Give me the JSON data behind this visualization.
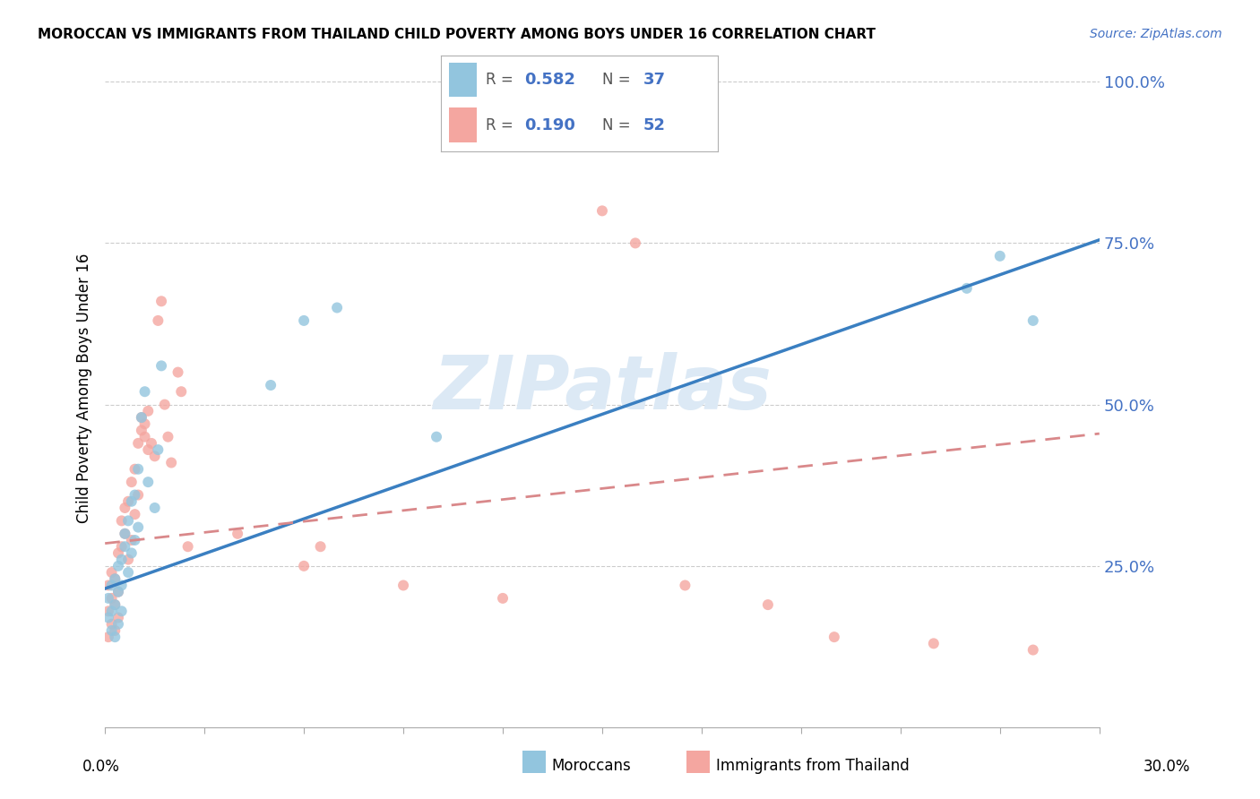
{
  "title": "MOROCCAN VS IMMIGRANTS FROM THAILAND CHILD POVERTY AMONG BOYS UNDER 16 CORRELATION CHART",
  "source": "Source: ZipAtlas.com",
  "ylabel": "Child Poverty Among Boys Under 16",
  "xlim": [
    0.0,
    0.3
  ],
  "ylim": [
    0.0,
    1.05
  ],
  "moroccan_color": "#92c5de",
  "thailand_color": "#f4a6a0",
  "moroccan_line_color": "#3a7fc1",
  "thailand_line_color": "#d9888a",
  "watermark": "ZIPatlas",
  "watermark_color": "#dce9f5",
  "ytick_color": "#4472c4",
  "moroccan_x": [
    0.001,
    0.001,
    0.002,
    0.002,
    0.002,
    0.003,
    0.003,
    0.003,
    0.004,
    0.004,
    0.004,
    0.005,
    0.005,
    0.005,
    0.006,
    0.006,
    0.007,
    0.007,
    0.008,
    0.008,
    0.009,
    0.009,
    0.01,
    0.01,
    0.011,
    0.012,
    0.013,
    0.015,
    0.016,
    0.017,
    0.05,
    0.06,
    0.07,
    0.1,
    0.26,
    0.27,
    0.28
  ],
  "moroccan_y": [
    0.17,
    0.2,
    0.15,
    0.18,
    0.22,
    0.14,
    0.19,
    0.23,
    0.16,
    0.21,
    0.25,
    0.18,
    0.22,
    0.26,
    0.28,
    0.3,
    0.24,
    0.32,
    0.27,
    0.35,
    0.29,
    0.36,
    0.31,
    0.4,
    0.48,
    0.52,
    0.38,
    0.34,
    0.43,
    0.56,
    0.53,
    0.63,
    0.65,
    0.45,
    0.68,
    0.73,
    0.63
  ],
  "thailand_x": [
    0.001,
    0.001,
    0.001,
    0.002,
    0.002,
    0.002,
    0.003,
    0.003,
    0.003,
    0.004,
    0.004,
    0.004,
    0.005,
    0.005,
    0.006,
    0.006,
    0.007,
    0.007,
    0.008,
    0.008,
    0.009,
    0.009,
    0.01,
    0.01,
    0.011,
    0.011,
    0.012,
    0.012,
    0.013,
    0.013,
    0.014,
    0.015,
    0.016,
    0.017,
    0.018,
    0.019,
    0.02,
    0.022,
    0.023,
    0.025,
    0.04,
    0.06,
    0.065,
    0.09,
    0.12,
    0.15,
    0.16,
    0.175,
    0.2,
    0.22,
    0.25,
    0.28
  ],
  "thailand_y": [
    0.14,
    0.18,
    0.22,
    0.16,
    0.2,
    0.24,
    0.15,
    0.19,
    0.23,
    0.17,
    0.21,
    0.27,
    0.28,
    0.32,
    0.3,
    0.34,
    0.26,
    0.35,
    0.29,
    0.38,
    0.33,
    0.4,
    0.36,
    0.44,
    0.46,
    0.48,
    0.45,
    0.47,
    0.43,
    0.49,
    0.44,
    0.42,
    0.63,
    0.66,
    0.5,
    0.45,
    0.41,
    0.55,
    0.52,
    0.28,
    0.3,
    0.25,
    0.28,
    0.22,
    0.2,
    0.8,
    0.75,
    0.22,
    0.19,
    0.14,
    0.13,
    0.12
  ]
}
